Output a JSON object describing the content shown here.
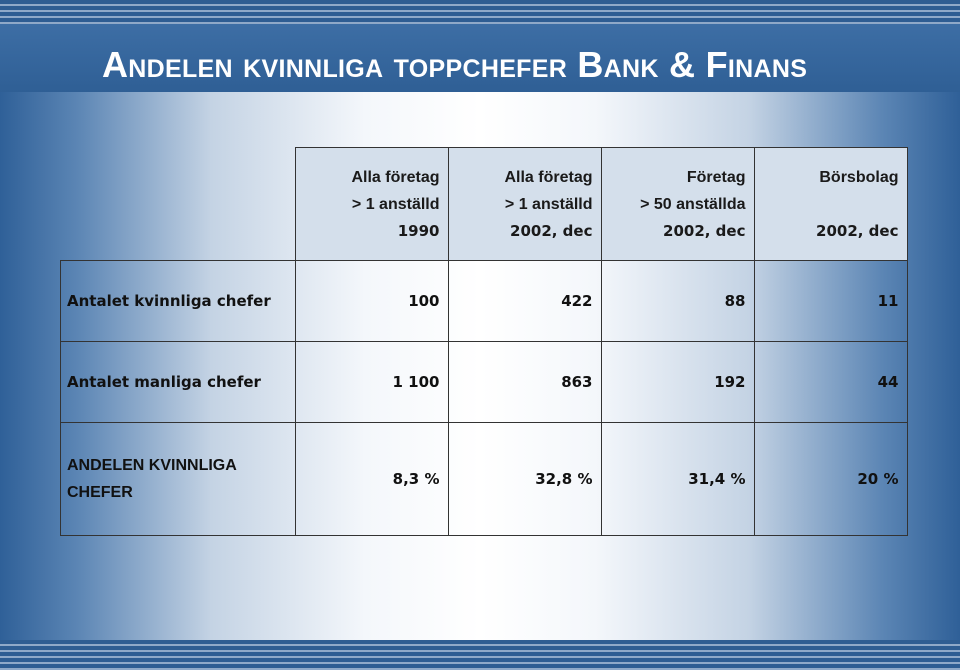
{
  "title": "Andelen kvinnliga toppchefer Bank & Finans",
  "columns": [
    {
      "line1": "Alla företag",
      "line2": "> 1 anställd",
      "line3": "1990"
    },
    {
      "line1": "Alla företag",
      "line2": "> 1 anställd",
      "line3": "2002, dec"
    },
    {
      "line1": "Företag",
      "line2": "> 50 anställda",
      "line3": "2002, dec"
    },
    {
      "line1": "Börsbolag",
      "line2": "",
      "line3": "2002, dec"
    }
  ],
  "rows": [
    {
      "label": "Antalet kvinnliga chefer",
      "values": [
        "100",
        "422",
        "88",
        "11"
      ]
    },
    {
      "label": "Antalet manliga chefer",
      "values": [
        "1 100",
        "863",
        "192",
        "44"
      ]
    },
    {
      "label": "ANDELEN KVINNLIGA CHEFER",
      "values": [
        "8,3 %",
        "32,8 %",
        "31,4 %",
        "20 %"
      ]
    }
  ]
}
